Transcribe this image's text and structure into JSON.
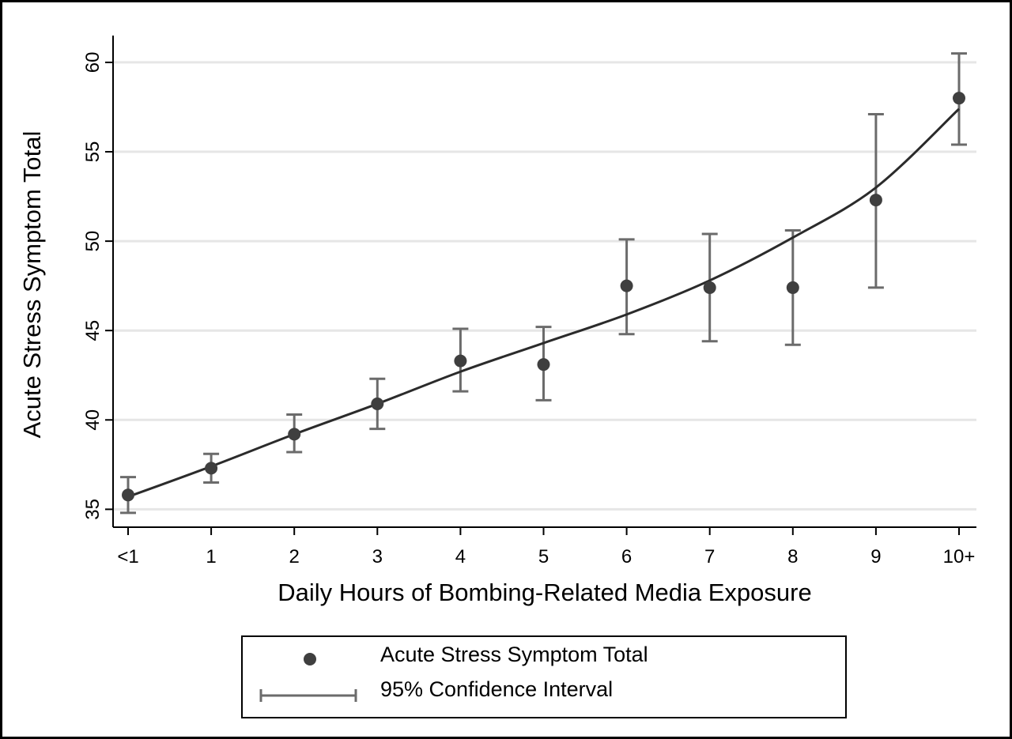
{
  "chart_data": {
    "type": "scatter",
    "title": "",
    "xlabel": "Daily Hours of Bombing-Related Media Exposure",
    "ylabel": "Acute Stress Symptom Total",
    "categories": [
      "<1",
      "1",
      "2",
      "3",
      "4",
      "5",
      "6",
      "7",
      "8",
      "9",
      "10+"
    ],
    "ylim": [
      34,
      61.5
    ],
    "yticks": [
      35,
      40,
      45,
      50,
      55,
      60
    ],
    "grid": true,
    "series": [
      {
        "name": "Acute Stress Symptom Total",
        "kind": "points",
        "values": [
          35.8,
          37.3,
          39.2,
          40.9,
          43.3,
          43.1,
          47.5,
          47.4,
          47.4,
          52.3,
          58.0
        ]
      },
      {
        "name": "95% Confidence Interval",
        "kind": "errorbars",
        "lower": [
          34.8,
          36.5,
          38.2,
          39.5,
          41.6,
          41.1,
          44.8,
          44.4,
          44.2,
          47.4,
          55.4
        ],
        "upper": [
          36.8,
          38.1,
          40.3,
          42.3,
          45.1,
          45.2,
          50.1,
          50.4,
          50.6,
          57.1,
          60.5
        ]
      },
      {
        "kind": "fit-line",
        "values": [
          35.7,
          37.4,
          39.2,
          40.9,
          42.7,
          44.3,
          45.9,
          47.8,
          50.2,
          53.0,
          57.4
        ]
      }
    ],
    "legend": {
      "position": "bottom",
      "entries": [
        "Acute Stress Symptom Total",
        "95% Confidence Interval"
      ]
    },
    "colors": {
      "points": "#3f3f3f",
      "errorbars": "#6b6b6b",
      "line": "#2b2b2b",
      "grid": "#e6e6e6",
      "axis": "#000000"
    }
  }
}
